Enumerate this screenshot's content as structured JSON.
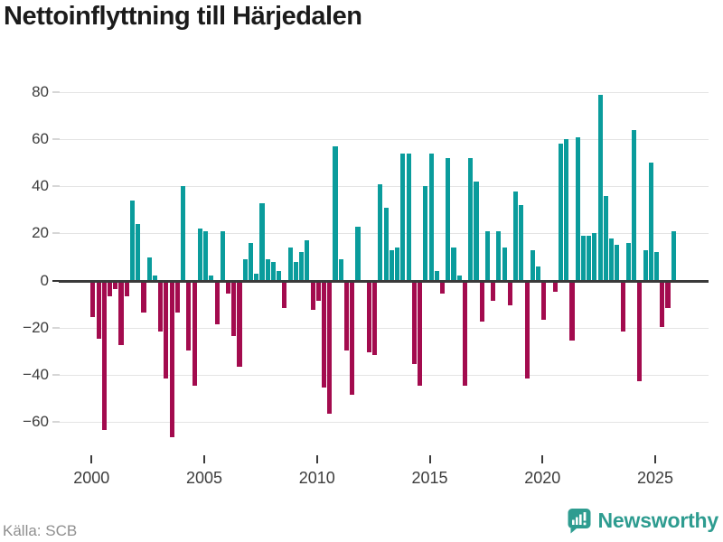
{
  "title": "Nettoinflyttning till Härjedalen",
  "source": "Källa: SCB",
  "logo": {
    "text": "Newsworthy"
  },
  "chart_data": {
    "type": "bar",
    "title": "Nettoinflyttning till Härjedalen",
    "frequency": "quarterly",
    "start_year": 2000,
    "end_year": 2025,
    "x_ticks": [
      2000,
      2005,
      2010,
      2015,
      2020,
      2025
    ],
    "y_ticks": [
      80,
      60,
      40,
      20,
      0,
      -20,
      -40,
      -60
    ],
    "y_tick_labels": [
      "80",
      "60",
      "40",
      "20",
      "0",
      "−20",
      "−40",
      "−60"
    ],
    "ylim": [
      -70,
      85
    ],
    "grid": true,
    "colors": {
      "positive": "#0a9c9c",
      "negative": "#a30b4e"
    },
    "values": [
      -15,
      -24,
      -63,
      -6,
      -3,
      -27,
      -6,
      34,
      24,
      -13,
      10,
      2,
      -21,
      -41,
      -66,
      -13,
      40,
      -29,
      -44,
      22,
      21,
      2,
      -18,
      21,
      -5,
      -23,
      -36,
      9,
      16,
      3,
      33,
      9,
      8,
      4,
      -11,
      14,
      8,
      12,
      17,
      -12,
      -8,
      -45,
      -56,
      57,
      9,
      -29,
      -48,
      23,
      0,
      -30,
      -31,
      41,
      31,
      13,
      14,
      54,
      54,
      -35,
      -44,
      40,
      54,
      4,
      -5,
      52,
      14,
      2,
      -44,
      52,
      42,
      -17,
      21,
      -8,
      21,
      14,
      -10,
      38,
      32,
      -41,
      13,
      6,
      -16,
      0,
      -4,
      58,
      60,
      -25,
      61,
      19,
      19,
      20,
      79,
      36,
      18,
      15,
      -21,
      16,
      64,
      -42,
      13,
      50,
      12,
      -19,
      -11,
      21
    ]
  }
}
